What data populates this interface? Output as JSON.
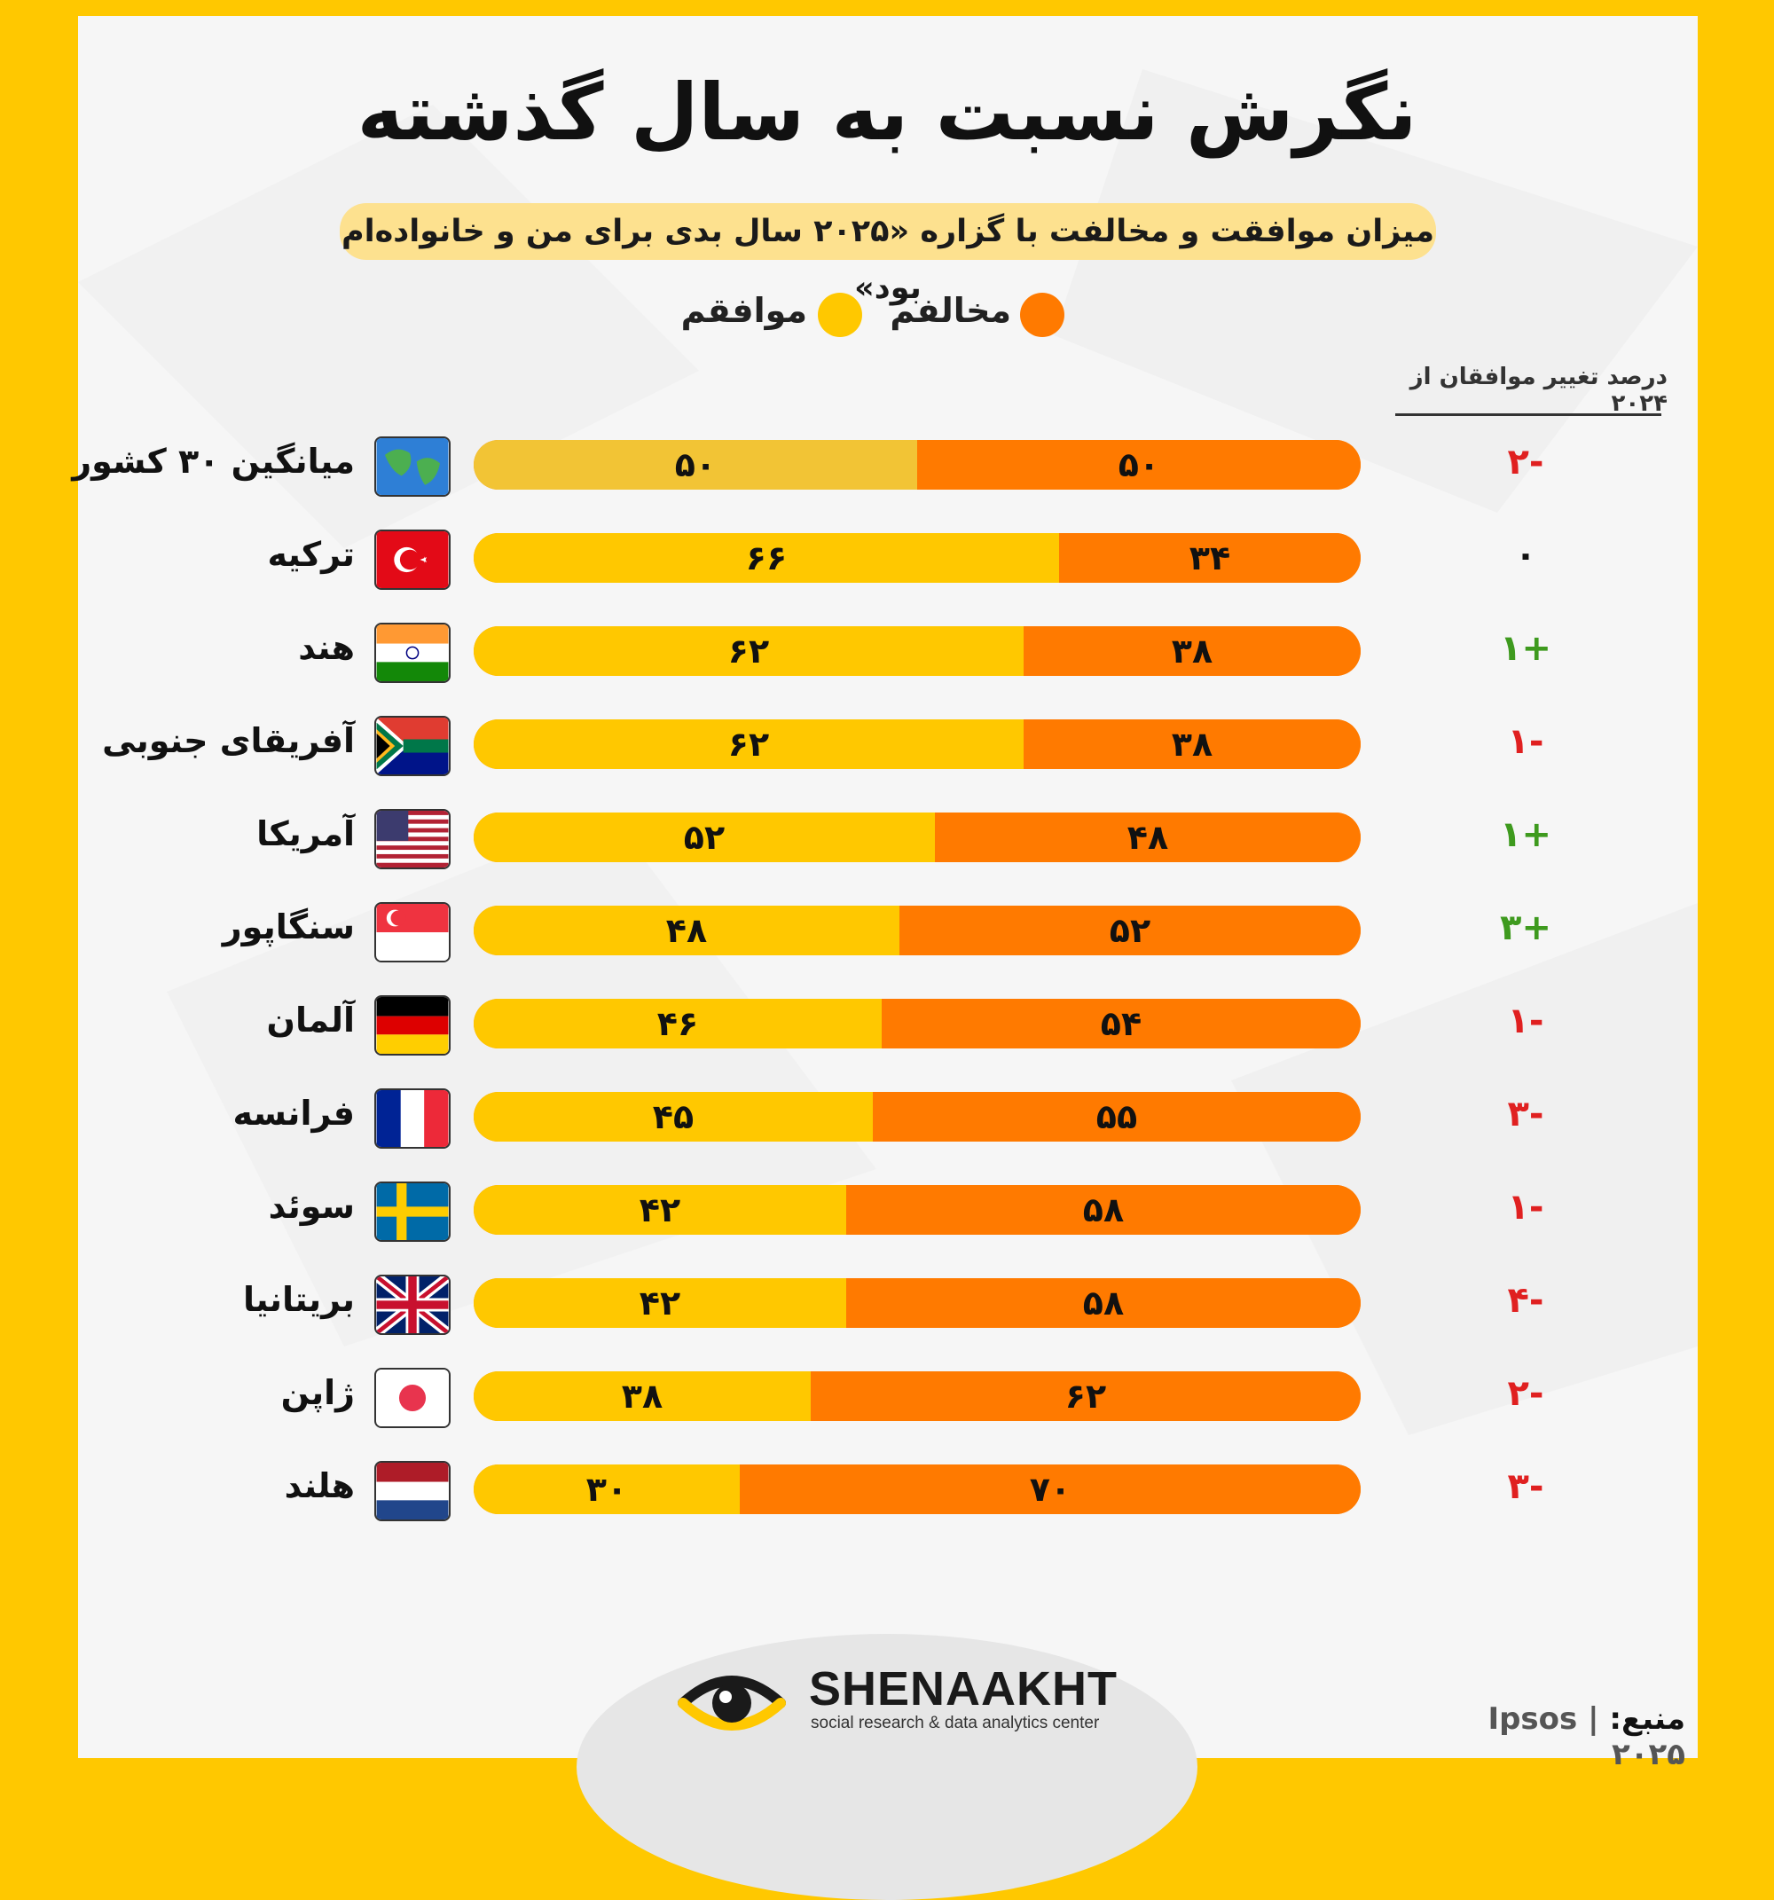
{
  "title": "نگرش نسبت به سال گذشته",
  "subtitle": "میزان موافقت و مخالفت با گزاره «۲۰۲۵ سال بدی برای من و خانواده‌ام بود»",
  "legend": {
    "disagree_label": "مخالفم",
    "agree_label": "موافقم",
    "disagree_color": "#FF7A00",
    "agree_color": "#FFC800"
  },
  "change_header": "درصد تغییر موافقان از ۲۰۲۴",
  "chart_data": {
    "type": "bar",
    "orientation": "horizontal-stacked",
    "title": "نگرش نسبت به سال گذشته",
    "categories": [
      "میانگین ۳۰ کشور",
      "ترکیه",
      "هند",
      "آفریقای جنوبی",
      "آمریکا",
      "سنگاپور",
      "آلمان",
      "فرانسه",
      "سوئد",
      "بریتانیا",
      "ژاپن",
      "هلند"
    ],
    "flags": [
      "globe",
      "turkey",
      "india",
      "south-africa",
      "usa",
      "singapore",
      "germany",
      "france",
      "sweden",
      "uk",
      "japan",
      "netherlands"
    ],
    "series": [
      {
        "name": "موافقم",
        "values": [
          50,
          66,
          62,
          62,
          52,
          48,
          46,
          45,
          42,
          42,
          38,
          30
        ],
        "labels": [
          "۵۰",
          "۶۶",
          "۶۲",
          "۶۲",
          "۵۲",
          "۴۸",
          "۴۶",
          "۴۵",
          "۴۲",
          "۴۲",
          "۳۸",
          "۳۰"
        ]
      },
      {
        "name": "مخالفم",
        "values": [
          50,
          34,
          38,
          38,
          48,
          52,
          54,
          55,
          58,
          58,
          62,
          70
        ],
        "labels": [
          "۵۰",
          "۳۴",
          "۳۸",
          "۳۸",
          "۴۸",
          "۵۲",
          "۵۴",
          "۵۵",
          "۵۸",
          "۵۸",
          "۶۲",
          "۷۰"
        ]
      }
    ],
    "change_from_2024": [
      -2,
      0,
      1,
      -1,
      1,
      3,
      -1,
      -3,
      -1,
      -4,
      -2,
      -3
    ],
    "change_labels": [
      "۲-",
      "۰",
      "۱+",
      "۱-",
      "۱+",
      "۳+",
      "۱-",
      "۳-",
      "۱-",
      "۴-",
      "۲-",
      "۳-"
    ],
    "xlim": [
      0,
      100
    ]
  },
  "logo": {
    "name": "SHENAAKHT",
    "tagline": "social research & data analytics center"
  },
  "source": {
    "label": "منبع:",
    "value": "Ipsos | ۲۰۲۵"
  }
}
